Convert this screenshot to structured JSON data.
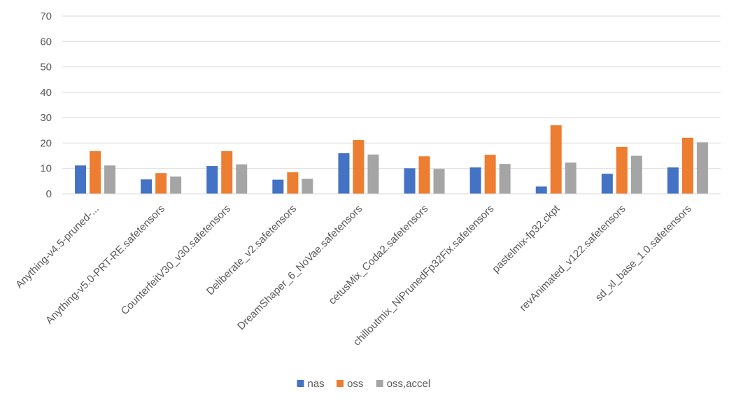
{
  "chart_data": {
    "type": "bar",
    "title": "",
    "xlabel": "",
    "ylabel": "",
    "ylim": [
      0,
      70
    ],
    "yticks": [
      0,
      10,
      20,
      30,
      40,
      50,
      60,
      70
    ],
    "grid": true,
    "legend_position": "bottom-center",
    "categories": [
      "Anything-v4.5-pruned-...",
      "Anything-v5.0-PRT-RE.safetensors",
      "CounterfeitV30_v30.safetensors",
      "Deliberate_v2.safetensors",
      "DreamShaper_6_NoVae.safetensors",
      "cetusMix_Coda2.safetensors",
      "chilloutmix_NiPrunedFp32Fix.safetensors",
      "pastelmix-fp32.ckpt",
      "revAnimated_v122.safetensors",
      "sd_xl_base_1.0.safetensors"
    ],
    "series": [
      {
        "name": "nas",
        "color": "#4472C4",
        "values": [
          11.2,
          5.7,
          11.0,
          5.6,
          16.0,
          10.1,
          10.4,
          2.9,
          7.9,
          10.4
        ]
      },
      {
        "name": "oss",
        "color": "#ED7D31",
        "values": [
          16.8,
          8.2,
          16.8,
          8.5,
          21.2,
          14.8,
          15.4,
          27.0,
          18.5,
          22.1
        ]
      },
      {
        "name": "oss,accel",
        "color": "#A5A5A5",
        "values": [
          11.2,
          6.8,
          11.6,
          5.9,
          15.5,
          9.8,
          11.8,
          12.3,
          15.0,
          20.3
        ]
      }
    ]
  }
}
